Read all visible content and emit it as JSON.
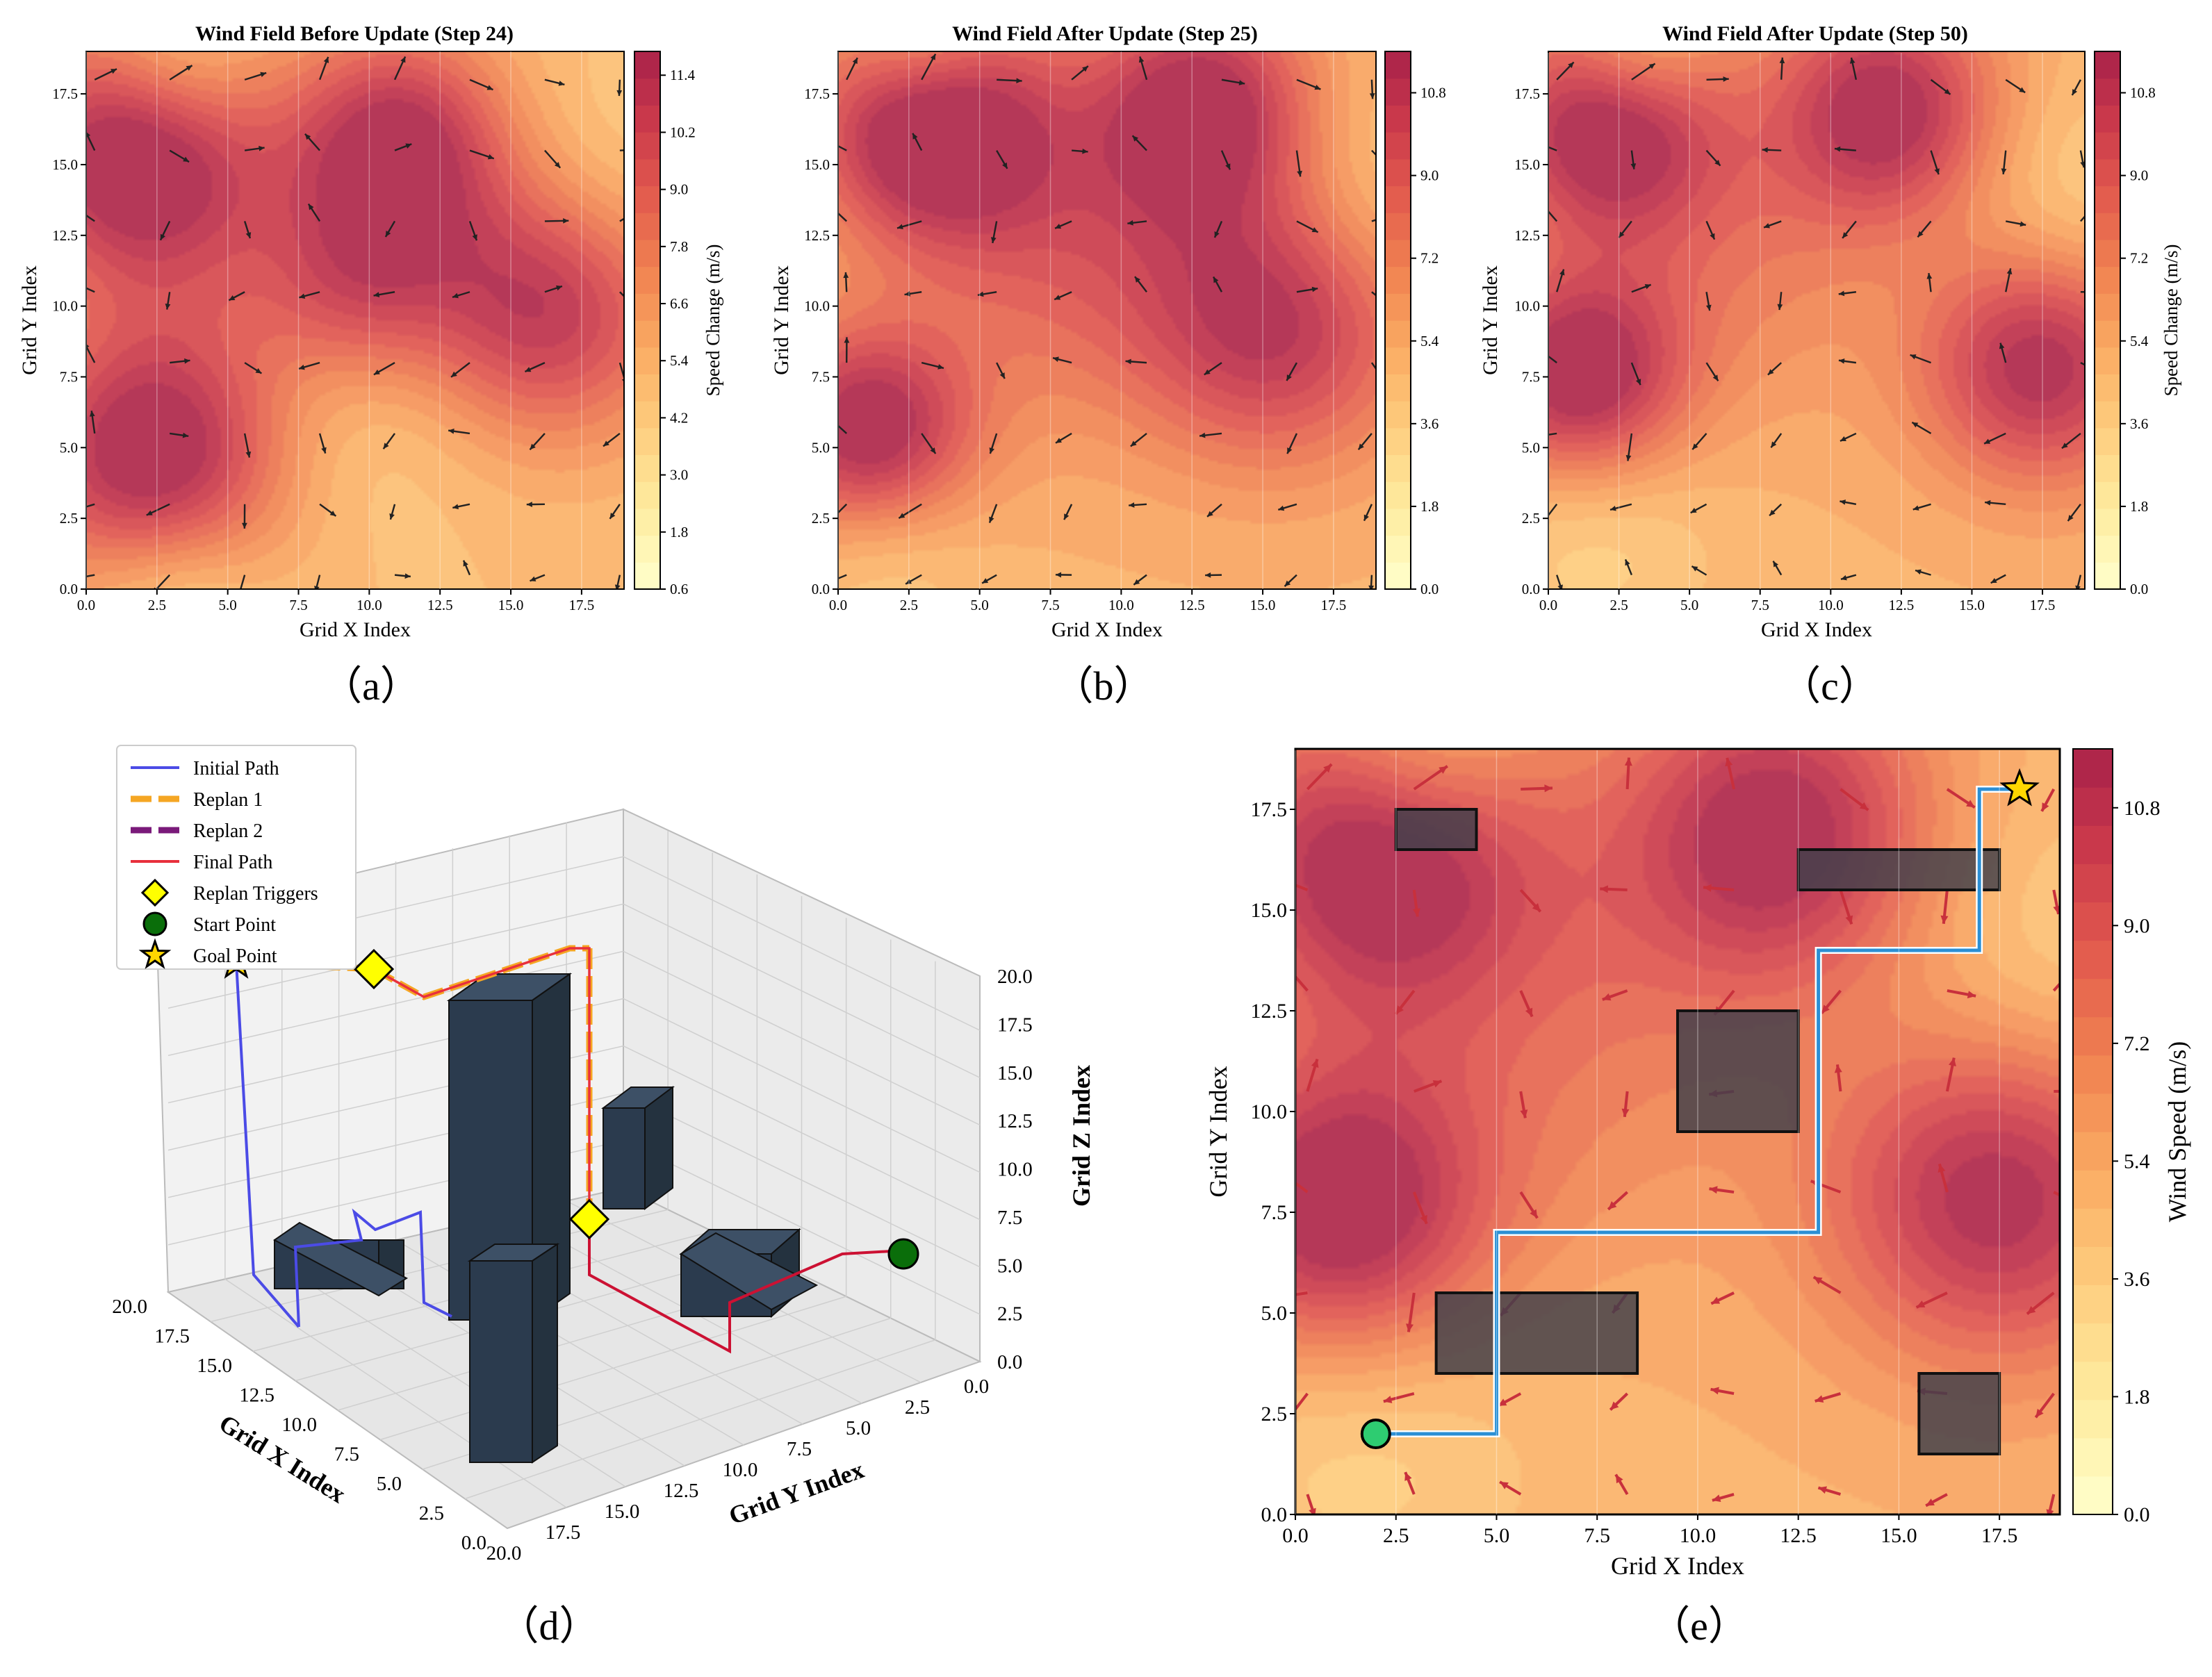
{
  "panels": [
    {
      "id": "a",
      "subcaption": "（a）",
      "title": "Wind Field Before Update (Step 24)",
      "xlabel": "Grid X Index",
      "ylabel": "Grid Y Index",
      "colorbar_label": "Speed Change (m/s)",
      "colorbar_ticks": [
        "0.6",
        "1.8",
        "3.0",
        "4.2",
        "5.4",
        "6.6",
        "7.8",
        "9.0",
        "10.2",
        "11.4"
      ],
      "colorbar_range": [
        0.6,
        11.9
      ],
      "hotspots": [
        [
          1.5,
          15.5,
          11.5,
          3.2
        ],
        [
          2.3,
          4.6,
          11.8,
          3.3
        ],
        [
          11.0,
          15.8,
          11.0,
          2.8
        ],
        [
          16.2,
          10.2,
          11.0,
          3.4
        ],
        [
          9.5,
          10.6,
          8.4,
          2.5
        ],
        [
          4.5,
          12.0,
          6.5,
          3.5
        ]
      ],
      "coldspots": [
        [
          9.8,
          6.8,
          5.5,
          3.5
        ],
        [
          11.0,
          13.0,
          6.5,
          2.0
        ],
        [
          17.8,
          14.0,
          5.0,
          3.0
        ],
        [
          3.0,
          18.5,
          4.5,
          2.0
        ],
        [
          3.0,
          0.0,
          4.5,
          2.3
        ]
      ]
    },
    {
      "id": "b",
      "subcaption": "（b）",
      "title": "Wind Field After Update (Step 25)",
      "xlabel": "Grid X Index",
      "ylabel": "Grid Y Index",
      "colorbar_label": "Speed Change (m/s)",
      "colorbar_ticks": [
        "0.0",
        "1.8",
        "3.6",
        "5.4",
        "7.2",
        "9.0",
        "10.8"
      ],
      "colorbar_range": [
        0.0,
        11.7
      ],
      "hotspots": [
        [
          3.0,
          16.5,
          11.5,
          2.8
        ],
        [
          13.0,
          17.0,
          11.0,
          2.8
        ],
        [
          15.5,
          9.5,
          10.5,
          3.5
        ],
        [
          1.0,
          5.5,
          11.5,
          2.6
        ],
        [
          8.0,
          11.5,
          7.5,
          4.0
        ],
        [
          6.0,
          16.0,
          6.5,
          3.5
        ]
      ],
      "coldspots": [
        [
          10.8,
          8.5,
          6.5,
          3.5
        ],
        [
          12.8,
          14.5,
          6.5,
          2.0
        ],
        [
          18.5,
          14.0,
          5.0,
          3.0
        ],
        [
          1.5,
          1.5,
          5.0,
          2.5
        ],
        [
          3.0,
          18.8,
          4.0,
          1.8
        ]
      ]
    },
    {
      "id": "c",
      "subcaption": "（c）",
      "title": "Wind Field After Update (Step 50)",
      "xlabel": "Grid X Index",
      "ylabel": "Grid Y Index",
      "colorbar_label": "Speed Change (m/s)",
      "colorbar_ticks": [
        "0.0",
        "1.8",
        "3.6",
        "5.4",
        "7.2",
        "9.0",
        "10.8"
      ],
      "colorbar_range": [
        0.0,
        11.7
      ],
      "hotspots": [
        [
          2.0,
          16.5,
          11.5,
          2.8
        ],
        [
          12.0,
          17.0,
          11.0,
          2.8
        ],
        [
          17.5,
          8.0,
          11.0,
          3.0
        ],
        [
          1.0,
          7.5,
          11.5,
          2.6
        ],
        [
          6.5,
          12.0,
          7.0,
          4.0
        ]
      ],
      "coldspots": [
        [
          11.0,
          9.5,
          6.5,
          4.0
        ],
        [
          12.0,
          14.8,
          6.5,
          2.0
        ],
        [
          18.5,
          13.5,
          5.0,
          3.0
        ],
        [
          1.5,
          2.0,
          5.0,
          3.0
        ],
        [
          3.0,
          18.8,
          4.0,
          1.8
        ]
      ]
    }
  ],
  "panel_d": {
    "subcaption": "（d）",
    "axes": {
      "x_label": "Grid X Index",
      "y_label": "Grid Y Index",
      "z_label": "Grid Z Index",
      "x_ticks": [
        "0.0",
        "2.5",
        "5.0",
        "7.5",
        "10.0",
        "12.5",
        "15.0",
        "17.5",
        "20.0"
      ],
      "y_ticks": [
        "0.0",
        "2.5",
        "5.0",
        "7.5",
        "10.0",
        "12.5",
        "15.0",
        "17.5",
        "20.0"
      ],
      "z_ticks": [
        "0.0",
        "2.5",
        "5.0",
        "7.5",
        "10.0",
        "12.5",
        "15.0",
        "17.5",
        "20.0"
      ]
    },
    "legend": [
      {
        "label": "Initial Path",
        "color": "#4b4be6",
        "style": "line"
      },
      {
        "label": "Replan 1",
        "color": "#f5a623",
        "style": "dash"
      },
      {
        "label": "Replan 2",
        "color": "#7a1a7a",
        "style": "dash"
      },
      {
        "label": "Final Path",
        "color": "#e8303c",
        "style": "line"
      },
      {
        "label": "Replan Triggers",
        "color": "#ffff00",
        "style": "diamond"
      },
      {
        "label": "Start Point",
        "color": "#0a6e0a",
        "style": "circle"
      },
      {
        "label": "Goal Point",
        "color": "#ffd700",
        "style": "star"
      }
    ],
    "obstacle_color": "#2b3b4e"
  },
  "panel_e": {
    "subcaption": "（e）",
    "xlabel": "Grid X Index",
    "ylabel": "Grid Y Index",
    "colorbar_label": "Wind Speed (m/s)",
    "colorbar_ticks": [
      "0.0",
      "1.8",
      "3.6",
      "5.4",
      "7.2",
      "9.0",
      "10.8"
    ],
    "colorbar_range": [
      0.0,
      11.7
    ],
    "path_color": "#2b8fd4",
    "start": {
      "x": 2,
      "y": 2,
      "color": "#2ecc71"
    },
    "goal": {
      "x": 18,
      "y": 18,
      "color": "#ffd700"
    },
    "path": [
      [
        2,
        2
      ],
      [
        5,
        2
      ],
      [
        5,
        7
      ],
      [
        13,
        7
      ],
      [
        13,
        14
      ],
      [
        17,
        14
      ],
      [
        17,
        18
      ],
      [
        18,
        18
      ]
    ],
    "obstacles": [
      [
        2.5,
        16.5,
        2,
        1
      ],
      [
        12.5,
        15.5,
        5,
        1
      ],
      [
        9.5,
        9.5,
        3,
        3
      ],
      [
        3.5,
        3.5,
        5,
        2
      ],
      [
        15.5,
        1.5,
        2,
        2
      ]
    ]
  },
  "chart_data": [
    {
      "type": "heatmap",
      "title": "Wind Field Before Update (Step 24)",
      "xlabel": "Grid X Index",
      "ylabel": "Grid Y Index",
      "xlim": [
        0,
        19
      ],
      "ylim": [
        0,
        19
      ],
      "colorbar_label": "Speed Change (m/s)",
      "colorbar_range": [
        0.6,
        11.9
      ]
    },
    {
      "type": "heatmap",
      "title": "Wind Field After Update (Step 25)",
      "xlabel": "Grid X Index",
      "ylabel": "Grid Y Index",
      "xlim": [
        0,
        19
      ],
      "ylim": [
        0,
        19
      ],
      "colorbar_label": "Speed Change (m/s)",
      "colorbar_range": [
        0.0,
        11.7
      ]
    },
    {
      "type": "heatmap",
      "title": "Wind Field After Update (Step 50)",
      "xlabel": "Grid X Index",
      "ylabel": "Grid Y Index",
      "xlim": [
        0,
        19
      ],
      "ylim": [
        0,
        19
      ],
      "colorbar_label": "Speed Change (m/s)",
      "colorbar_range": [
        0.0,
        11.7
      ]
    },
    {
      "type": "line",
      "xlabel": "Grid X Index",
      "ylabel": "Grid Y Index",
      "zlabel": "Grid Z Index",
      "xlim": [
        0,
        20
      ],
      "ylim": [
        0,
        20
      ],
      "zlim": [
        0,
        20
      ],
      "series": [
        {
          "name": "Initial Path"
        },
        {
          "name": "Replan 1"
        },
        {
          "name": "Replan 2"
        },
        {
          "name": "Final Path"
        },
        {
          "name": "Replan Triggers"
        },
        {
          "name": "Start Point"
        },
        {
          "name": "Goal Point"
        }
      ]
    },
    {
      "type": "heatmap",
      "xlabel": "Grid X Index",
      "ylabel": "Grid Y Index",
      "xlim": [
        0,
        19
      ],
      "ylim": [
        0,
        19
      ],
      "colorbar_label": "Wind Speed (m/s)",
      "colorbar_range": [
        0.0,
        11.7
      ],
      "path": [
        [
          2,
          2
        ],
        [
          5,
          2
        ],
        [
          5,
          7
        ],
        [
          13,
          7
        ],
        [
          13,
          14
        ],
        [
          17,
          14
        ],
        [
          17,
          18
        ],
        [
          18,
          18
        ]
      ],
      "start": [
        2,
        2
      ],
      "goal": [
        18,
        18
      ]
    }
  ]
}
